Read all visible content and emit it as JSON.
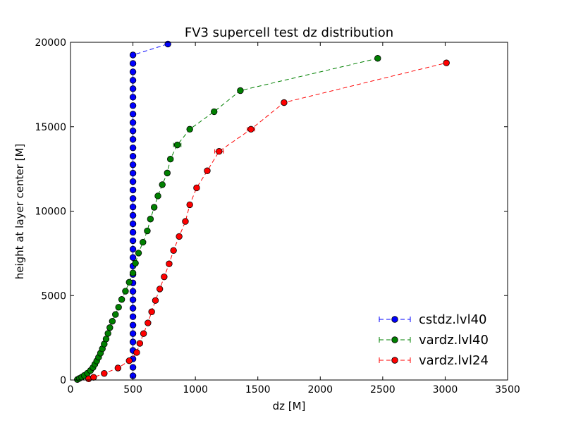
{
  "chart_data": {
    "type": "line",
    "title": "FV3 supercell test dz distribution",
    "xlabel": "dz [M]",
    "ylabel": "height at layer center [M]",
    "xlim": [
      0,
      3500
    ],
    "ylim": [
      0,
      20000
    ],
    "xticks": [
      0,
      500,
      1000,
      1500,
      2000,
      2500,
      3000,
      3500
    ],
    "yticks": [
      0,
      5000,
      10000,
      15000,
      20000
    ],
    "legend_position": "lower-right",
    "grid": false,
    "series": [
      {
        "name": "cstdz.lvl40",
        "color": "#0000ff",
        "x": [
          500,
          500,
          500,
          500,
          500,
          500,
          500,
          500,
          500,
          500,
          500,
          500,
          500,
          500,
          500,
          500,
          500,
          500,
          500,
          500,
          500,
          500,
          500,
          500,
          500,
          500,
          500,
          500,
          500,
          500,
          500,
          500,
          500,
          500,
          500,
          500,
          500,
          500,
          500,
          780
        ],
        "y": [
          250,
          750,
          1250,
          1750,
          2250,
          2750,
          3250,
          3750,
          4250,
          4750,
          5250,
          5750,
          6250,
          6750,
          7250,
          7750,
          8250,
          8750,
          9250,
          9750,
          10250,
          10750,
          11250,
          11750,
          12250,
          12750,
          13250,
          13750,
          14250,
          14750,
          15250,
          15750,
          16250,
          16750,
          17250,
          17750,
          18250,
          18750,
          19250,
          19900
        ],
        "xerr": [
          0,
          0,
          0,
          0,
          0,
          0,
          0,
          0,
          0,
          0,
          0,
          0,
          0,
          0,
          0,
          0,
          0,
          0,
          0,
          0,
          0,
          0,
          0,
          0,
          0,
          0,
          0,
          0,
          0,
          0,
          0,
          0,
          0,
          0,
          0,
          0,
          0,
          0,
          0,
          0
        ]
      },
      {
        "name": "vardz.lvl40",
        "color": "#008000",
        "x": [
          55,
          70,
          90,
          110,
          135,
          160,
          180,
          195,
          210,
          225,
          240,
          255,
          270,
          285,
          300,
          315,
          335,
          360,
          385,
          410,
          440,
          470,
          500,
          520,
          545,
          580,
          615,
          640,
          670,
          700,
          735,
          775,
          800,
          855,
          955,
          1150,
          1360,
          2460
        ],
        "y": [
          30,
          90,
          170,
          270,
          400,
          560,
          740,
          930,
          1130,
          1350,
          1590,
          1850,
          2130,
          2430,
          2760,
          3100,
          3480,
          3880,
          4310,
          4770,
          5260,
          5790,
          6340,
          6920,
          7520,
          8160,
          8830,
          9530,
          10230,
          10900,
          11570,
          12260,
          13080,
          13920,
          14850,
          15890,
          17140,
          19050
        ],
        "xerr": [
          0,
          0,
          0,
          0,
          0,
          0,
          0,
          0,
          0,
          0,
          0,
          0,
          0,
          0,
          0,
          0,
          0,
          0,
          0,
          0,
          0,
          0,
          0,
          0,
          0,
          0,
          0,
          0,
          0,
          0,
          0,
          0,
          0,
          30,
          0,
          0,
          0,
          0
        ]
      },
      {
        "name": "vardz.lvl24",
        "color": "#ff0000",
        "x": [
          145,
          185,
          270,
          380,
          470,
          530,
          555,
          585,
          620,
          650,
          680,
          715,
          750,
          790,
          825,
          870,
          920,
          955,
          1010,
          1095,
          1190,
          1445,
          1710,
          3010
        ],
        "y": [
          70,
          160,
          390,
          710,
          1140,
          1630,
          2170,
          2750,
          3380,
          4040,
          4710,
          5390,
          6110,
          6880,
          7670,
          8500,
          9390,
          10380,
          11380,
          12390,
          13540,
          14850,
          16430,
          18780
        ],
        "xerr": [
          0,
          0,
          0,
          0,
          0,
          0,
          0,
          0,
          0,
          0,
          0,
          0,
          0,
          0,
          0,
          0,
          0,
          0,
          0,
          0,
          35,
          30,
          0,
          0
        ]
      }
    ]
  }
}
